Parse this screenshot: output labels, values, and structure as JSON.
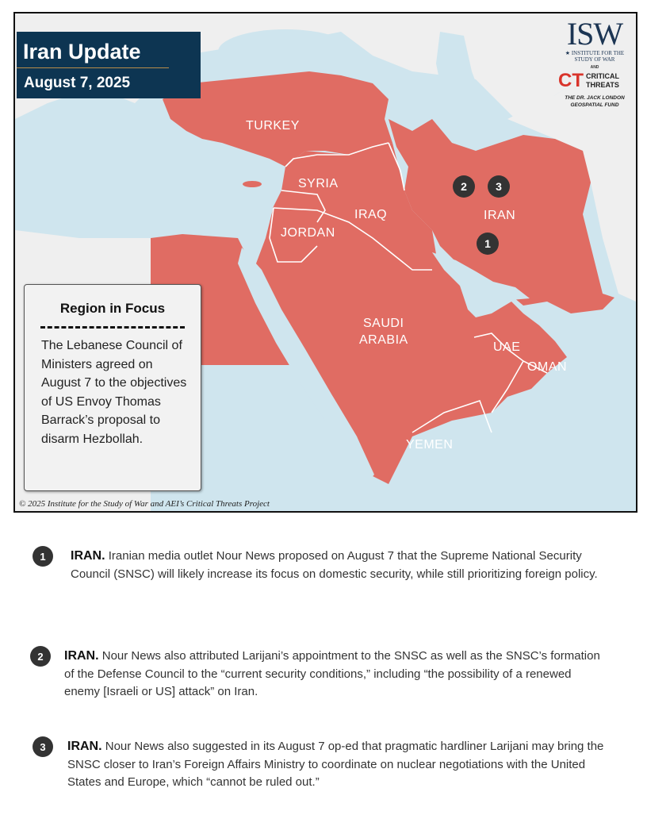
{
  "header": {
    "title": "Iran Update",
    "date": "August 7, 2025"
  },
  "logo": {
    "isw": "ISW",
    "isw_sub": "INSTITUTE FOR THE STUDY OF WAR",
    "and": "AND",
    "ct_mark": "CT",
    "ct_text": "CRITICAL THREATS",
    "fund": "THE DR. JACK LONDON GEOSPATIAL FUND"
  },
  "colors": {
    "highlight": "#e06c63",
    "sea": "#cfe5ee",
    "land": "#efefef",
    "title_bg": "#0d3552",
    "marker": "#333333"
  },
  "map": {
    "labels": [
      "TURKEY",
      "SYRIA",
      "IRAQ",
      "JORDAN",
      "IRAN",
      "SAUDI",
      "ARABIA",
      "UAE",
      "OMAN",
      "YEMEN"
    ],
    "markers": [
      "1",
      "2",
      "3"
    ]
  },
  "focus": {
    "title": "Region in Focus",
    "text": "The Lebanese Council of Ministers agreed on August 7 to the objectives of US Envoy Thomas Barrack’s proposal to disarm Hezbollah."
  },
  "copyright": "© 2025 Institute for the Study of War and AEI’s Critical Threats Project",
  "notes": [
    {
      "num": "1",
      "country": "IRAN.",
      "text": " Iranian media outlet Nour News proposed on August 7 that the Supreme National Security Council (SNSC) will likely increase its focus on domestic security, while still prioritizing foreign policy."
    },
    {
      "num": "2",
      "country": "IRAN.",
      "text": " Nour News also attributed Larijani’s appointment to the SNSC as well as the SNSC’s formation of the Defense Council to the “current security conditions,” including “the possibility of a renewed enemy [Israeli or US] attack” on Iran."
    },
    {
      "num": "3",
      "country": "IRAN.",
      "text": " Nour News also suggested in its August 7 op-ed that pragmatic hardliner Larijani may bring the SNSC closer to Iran’s Foreign Affairs Ministry to coordinate on nuclear negotiations with the United States and Europe, which “cannot be ruled out.”"
    }
  ]
}
